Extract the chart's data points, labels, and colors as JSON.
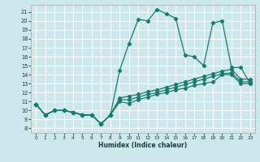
{
  "xlabel": "Humidex (Indice chaleur)",
  "bg_color": "#cce8ec",
  "grid_color": "#ffffff",
  "line_color": "#1a7a6e",
  "xlim": [
    -0.5,
    23.5
  ],
  "ylim": [
    7.5,
    21.8
  ],
  "xticks": [
    0,
    1,
    2,
    3,
    4,
    5,
    6,
    7,
    8,
    9,
    10,
    11,
    12,
    13,
    14,
    15,
    16,
    17,
    18,
    19,
    20,
    21,
    22,
    23
  ],
  "yticks": [
    8,
    9,
    10,
    11,
    12,
    13,
    14,
    15,
    16,
    17,
    18,
    19,
    20,
    21
  ],
  "curve_x": [
    0,
    1,
    2,
    3,
    4,
    5,
    6,
    7,
    8,
    9,
    10,
    11,
    12,
    13,
    14,
    15,
    16,
    17,
    18,
    19,
    20,
    21,
    22,
    23
  ],
  "curve_y": [
    10.7,
    9.5,
    10.0,
    10.0,
    9.8,
    9.5,
    9.5,
    8.5,
    9.5,
    14.5,
    17.5,
    20.2,
    20.0,
    21.3,
    20.8,
    20.3,
    16.2,
    16.0,
    15.0,
    19.8,
    20.0,
    14.8,
    14.8,
    13.0
  ],
  "line1_x": [
    0,
    1,
    2,
    3,
    4,
    5,
    6,
    7,
    8,
    9,
    10,
    11,
    12,
    13,
    14,
    15,
    16,
    17,
    18,
    19,
    20,
    21,
    22,
    23
  ],
  "line1_y": [
    10.7,
    9.5,
    10.0,
    10.0,
    9.8,
    9.5,
    9.5,
    8.5,
    9.5,
    11.0,
    10.8,
    11.2,
    11.5,
    11.8,
    12.0,
    12.3,
    12.5,
    12.8,
    13.0,
    13.2,
    14.0,
    14.0,
    13.0,
    13.0
  ],
  "line2_x": [
    0,
    1,
    2,
    3,
    4,
    5,
    6,
    7,
    8,
    9,
    10,
    11,
    12,
    13,
    14,
    15,
    16,
    17,
    18,
    19,
    20,
    21,
    22,
    23
  ],
  "line2_y": [
    10.7,
    9.5,
    10.0,
    10.0,
    9.8,
    9.5,
    9.5,
    8.5,
    9.5,
    11.2,
    11.2,
    11.5,
    11.8,
    12.0,
    12.3,
    12.6,
    12.9,
    13.2,
    13.5,
    13.8,
    14.1,
    14.2,
    13.2,
    13.2
  ],
  "line3_x": [
    0,
    1,
    2,
    3,
    4,
    5,
    6,
    7,
    8,
    9,
    10,
    11,
    12,
    13,
    14,
    15,
    16,
    17,
    18,
    19,
    20,
    21,
    22,
    23
  ],
  "line3_y": [
    10.7,
    9.5,
    10.0,
    10.0,
    9.8,
    9.5,
    9.5,
    8.5,
    9.5,
    11.4,
    11.6,
    11.8,
    12.1,
    12.3,
    12.6,
    12.9,
    13.2,
    13.5,
    13.8,
    14.1,
    14.4,
    14.6,
    13.5,
    13.5
  ]
}
